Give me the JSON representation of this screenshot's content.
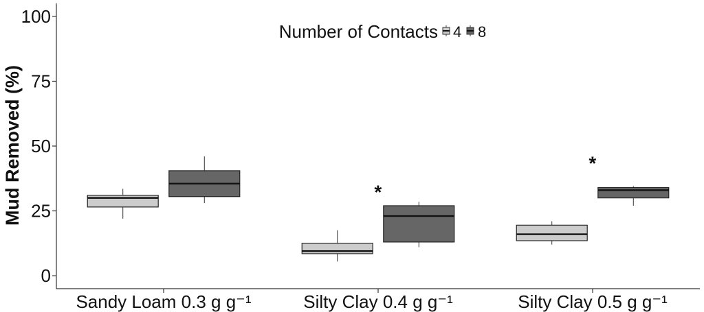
{
  "chart_data": {
    "type": "boxplot",
    "ylabel": "Mud Removed (%)",
    "xlabel": "",
    "ylim": [
      -5,
      105
    ],
    "yticks": [
      0,
      25,
      50,
      75,
      100
    ],
    "grid": false,
    "categories": [
      "Sandy Loam 0.3 g g⁻¹",
      "Silty Clay 0.4 g g⁻¹",
      "Silty Clay 0.5 g g⁻¹"
    ],
    "legend": {
      "title": "Number of Contacts",
      "position": "top-center",
      "entries": [
        {
          "label": "4",
          "color": "#cccccc"
        },
        {
          "label": "8",
          "color": "#666666"
        }
      ]
    },
    "series": [
      {
        "name": "4",
        "color": "#cccccc",
        "boxes": [
          {
            "category": 0,
            "min": 22,
            "q1": 26.5,
            "median": 30,
            "q3": 31,
            "max": 33.5
          },
          {
            "category": 1,
            "min": 5.5,
            "q1": 8.5,
            "median": 9.5,
            "q3": 12.5,
            "max": 17.5
          },
          {
            "category": 2,
            "min": 12,
            "q1": 13.5,
            "median": 16,
            "q3": 19.5,
            "max": 21
          }
        ]
      },
      {
        "name": "8",
        "color": "#666666",
        "boxes": [
          {
            "category": 0,
            "min": 28,
            "q1": 30.5,
            "median": 35.5,
            "q3": 40.5,
            "max": 46
          },
          {
            "category": 1,
            "min": 11,
            "q1": 13,
            "median": 23,
            "q3": 27,
            "max": 28.5
          },
          {
            "category": 2,
            "min": 27,
            "q1": 30,
            "median": 33,
            "q3": 34,
            "max": 34.5
          }
        ]
      }
    ],
    "annotations": [
      {
        "text": "*",
        "category": 1,
        "series": "8",
        "y": 33
      },
      {
        "text": "*",
        "category": 2,
        "series": "8",
        "y": 44
      }
    ]
  }
}
